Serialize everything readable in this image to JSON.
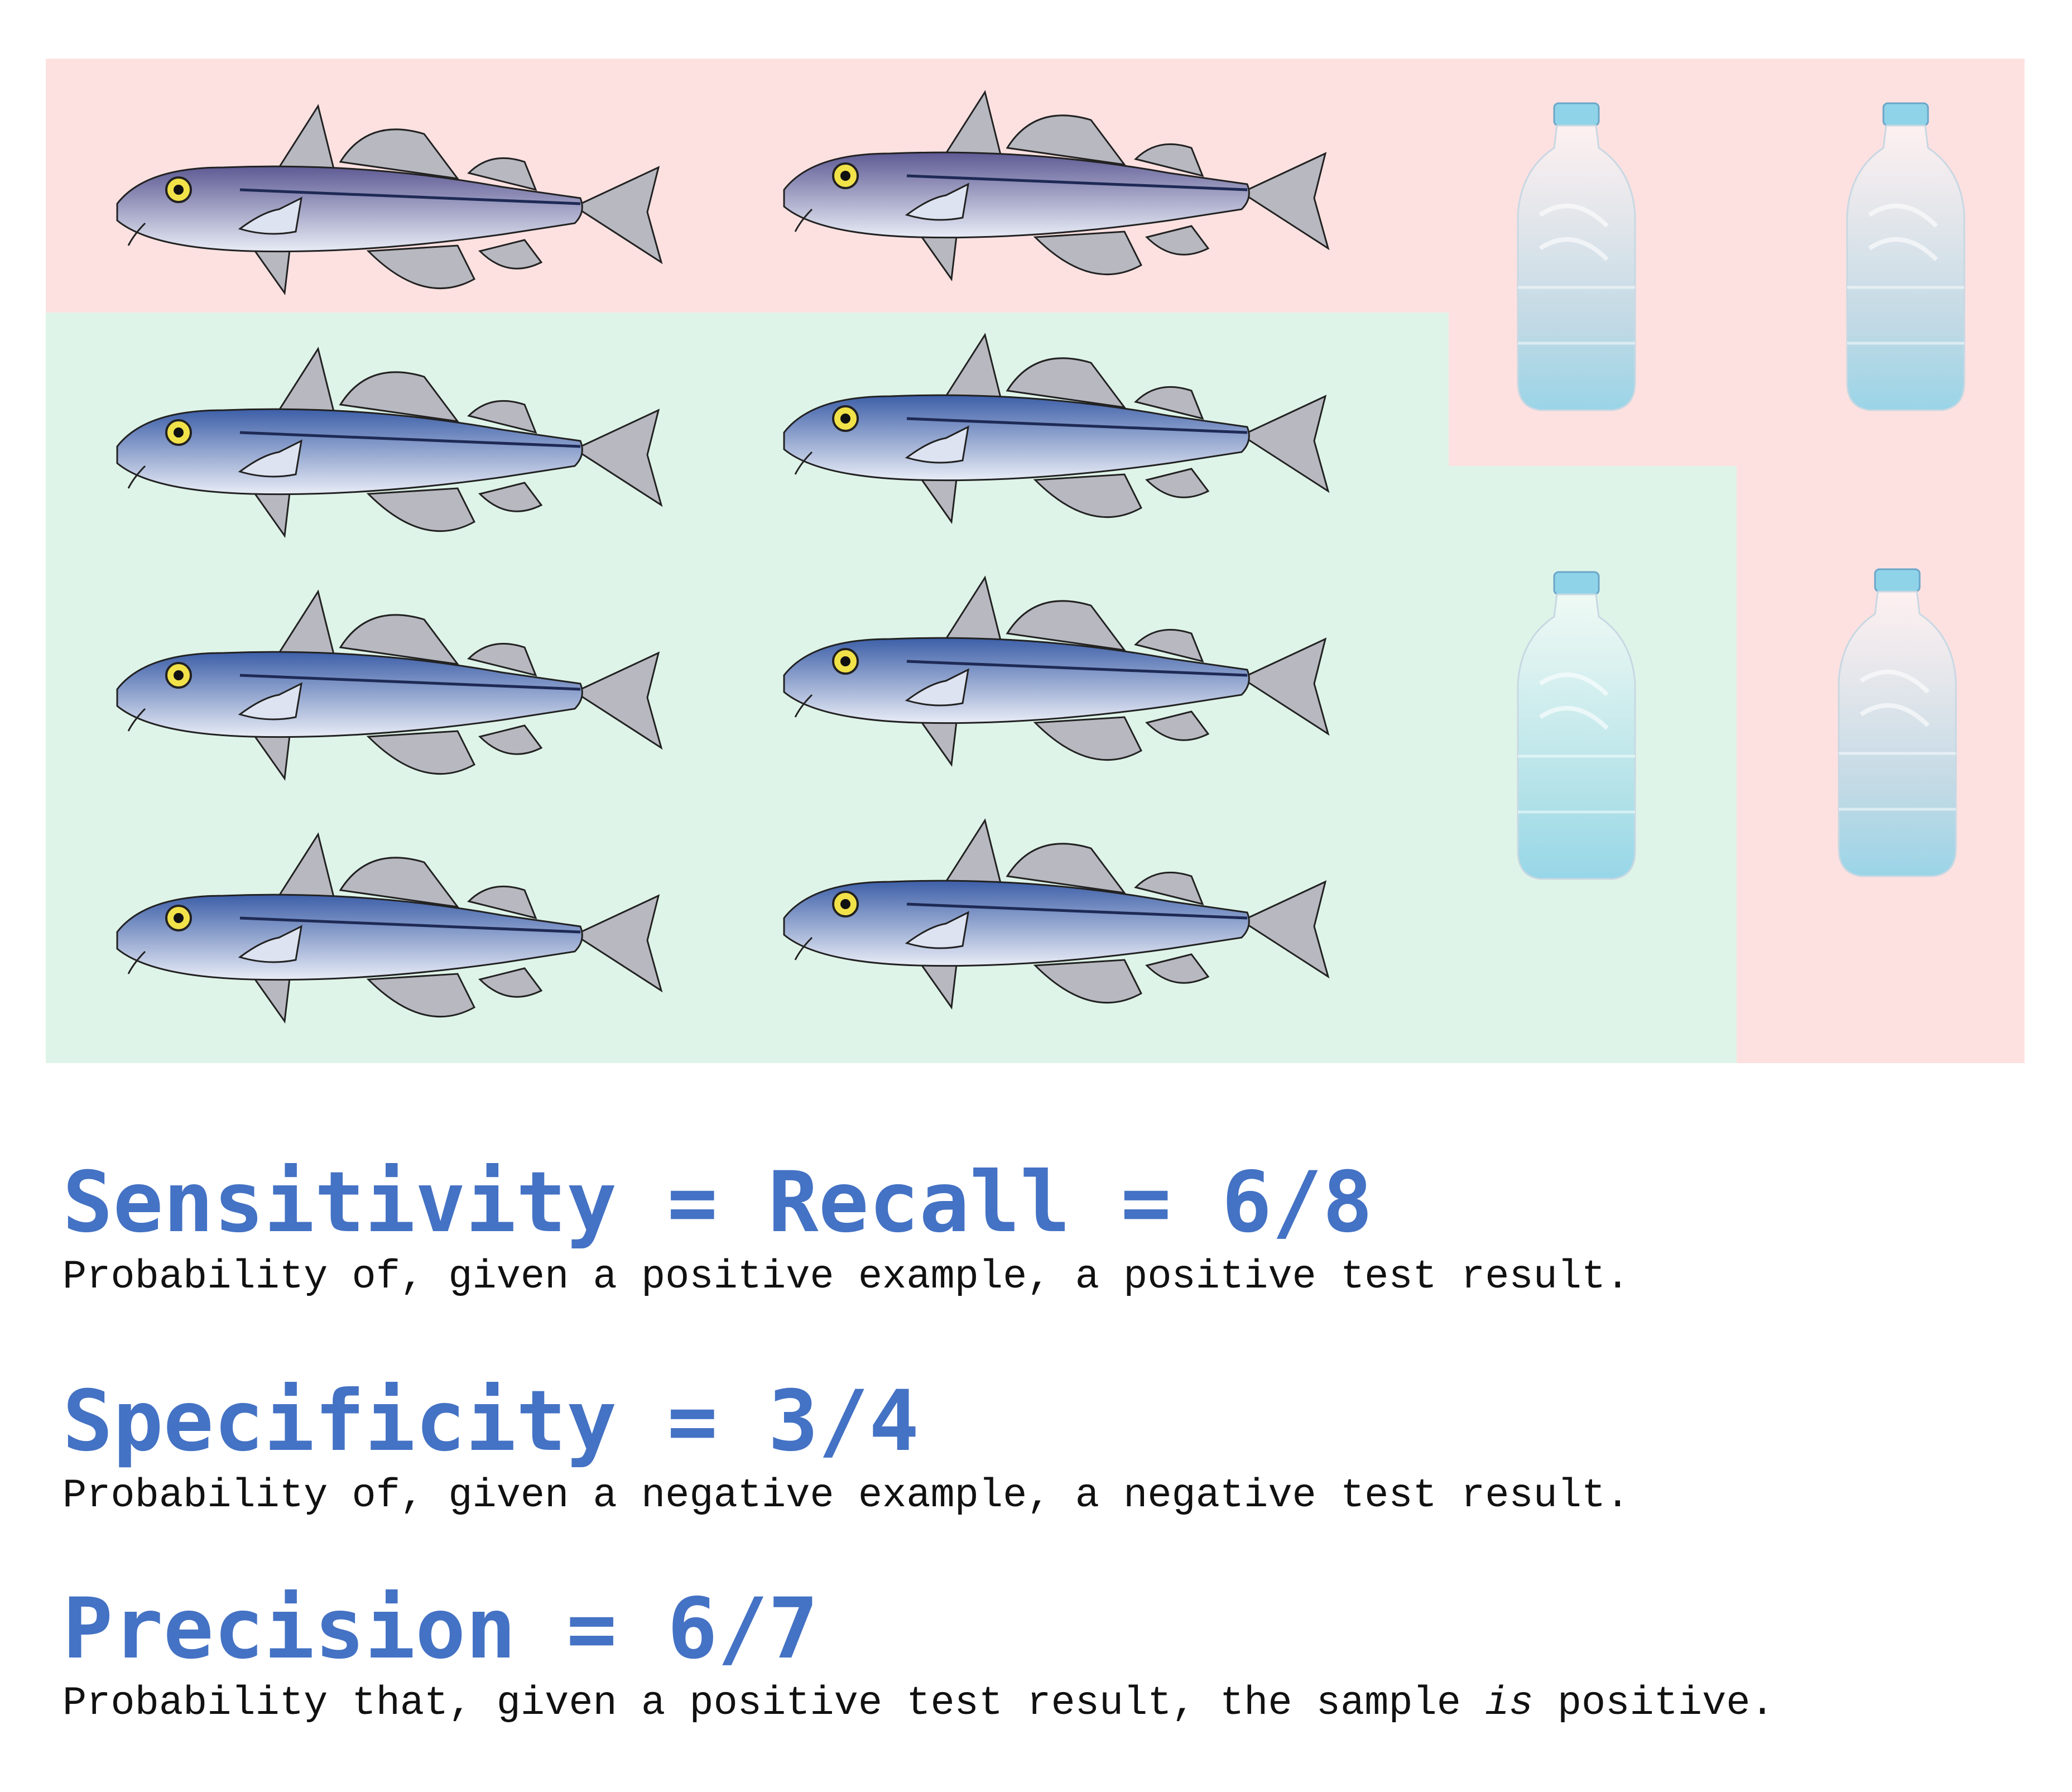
{
  "colors": {
    "negative_region": "#fde1e1",
    "positive_region": "#dff4e9",
    "fish_body_positive": "#3d5fa8",
    "fish_body_negative": "#5e5a94",
    "bottle": "#8fd3e8",
    "metric_title": "#4472c4"
  },
  "grid": {
    "items": [
      {
        "kind": "fish-icon",
        "class": "false-negative"
      },
      {
        "kind": "fish-icon",
        "class": "false-negative"
      },
      {
        "kind": "fish-icon",
        "class": "true-positive"
      },
      {
        "kind": "fish-icon",
        "class": "true-positive"
      },
      {
        "kind": "fish-icon",
        "class": "true-positive"
      },
      {
        "kind": "fish-icon",
        "class": "true-positive"
      },
      {
        "kind": "fish-icon",
        "class": "true-positive"
      },
      {
        "kind": "fish-icon",
        "class": "true-positive"
      },
      {
        "kind": "bottle-icon",
        "class": "true-negative"
      },
      {
        "kind": "bottle-icon",
        "class": "true-negative"
      },
      {
        "kind": "bottle-icon",
        "class": "false-positive"
      },
      {
        "kind": "bottle-icon",
        "class": "true-negative"
      }
    ]
  },
  "metrics": [
    {
      "title": "Sensitivity = Recall = 6/8",
      "desc_parts": [
        "Probability of, given a positive example, a positive test result."
      ]
    },
    {
      "title": "Specificity = 3/4",
      "desc_parts": [
        "Probability of, given a negative example, a negative test result."
      ]
    },
    {
      "title": "Precision = 6/7",
      "desc_parts": [
        "Probability that, given a positive test result, the sample ",
        "is",
        " positive."
      ]
    }
  ]
}
